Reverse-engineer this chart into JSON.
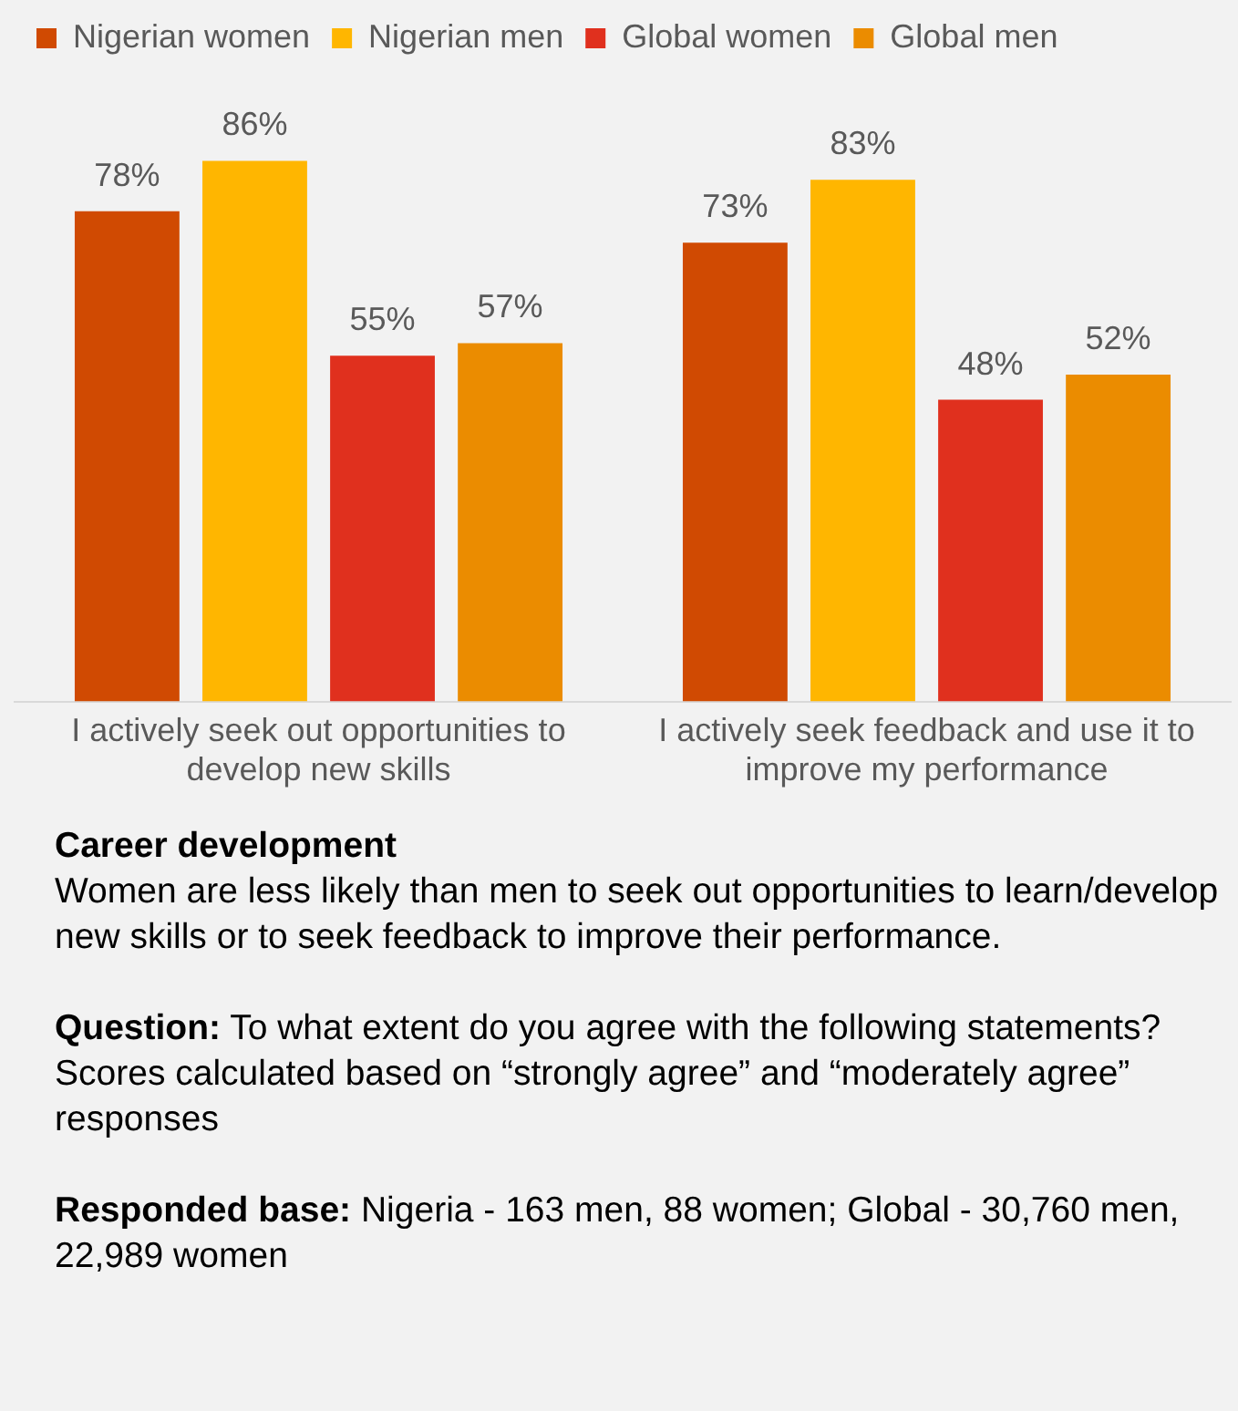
{
  "chart_data": {
    "type": "bar",
    "title": "Career development",
    "categories": [
      "I actively seek out opportunities to develop new skills",
      "I actively seek feedback and use it to improve my performance"
    ],
    "series": [
      {
        "name": "Nigerian women",
        "color": "#d04a02",
        "values": [
          78,
          73
        ],
        "value_labels": [
          "78%",
          "73%"
        ]
      },
      {
        "name": "Nigerian men",
        "color": "#ffb600",
        "values": [
          86,
          83
        ],
        "value_labels": [
          "86%",
          "83%"
        ]
      },
      {
        "name": "Global women",
        "color": "#e0301e",
        "values": [
          55,
          48
        ],
        "value_labels": [
          "55%",
          "48%"
        ]
      },
      {
        "name": "Global men",
        "color": "#eb8c00",
        "values": [
          57,
          52
        ],
        "value_labels": [
          "57%",
          "52%"
        ]
      }
    ],
    "legend": "top",
    "grid": false,
    "tick_labels": "x",
    "annotations": [
      "Women are less likely than men to seek out opportunities to learn/develop new skills or to seek feedback to improve their performance.",
      "Question: To what extent do you agree with the following statements? Scores calculated based on “strongly agree” and “moderately agree” responses",
      "Responded base: Nigeria - 163 men, 88 women; Global - 30,760 men, 22,989 women"
    ]
  }
}
